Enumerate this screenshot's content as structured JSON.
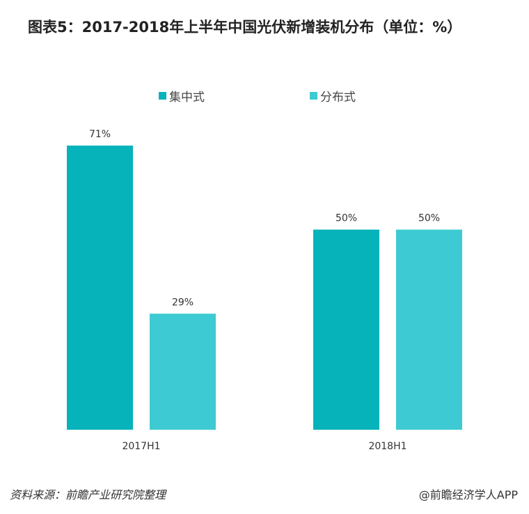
{
  "chart_data": {
    "type": "bar",
    "title": "图表5：2017-2018年上半年中国光伏新增装机分布（单位：%）",
    "categories": [
      "2017H1",
      "2018H1"
    ],
    "series": [
      {
        "name": "集中式",
        "values": [
          71,
          50
        ],
        "color": "#07B3BB"
      },
      {
        "name": "分布式",
        "values": [
          29,
          50
        ],
        "color": "#3ECAD2"
      }
    ],
    "value_suffix": "%",
    "ylim": [
      0,
      71
    ],
    "grid": false,
    "legend": "top"
  },
  "footer": {
    "source": "资料来源：前瞻产业研究院整理",
    "watermark": "@前瞻经济学人APP"
  }
}
